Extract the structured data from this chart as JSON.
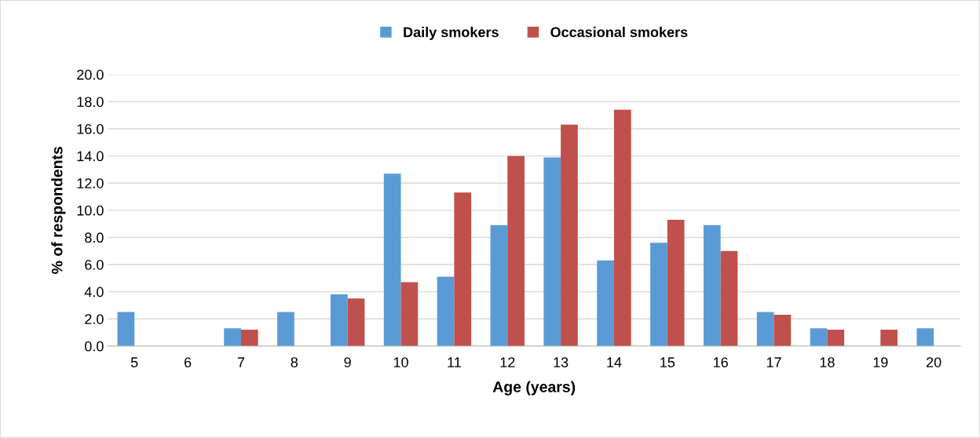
{
  "chart_data": {
    "type": "bar",
    "xlabel": "Age (years)",
    "ylabel": "% of respondents",
    "categories": [
      "5",
      "6",
      "7",
      "8",
      "9",
      "10",
      "11",
      "12",
      "13",
      "14",
      "15",
      "16",
      "17",
      "18",
      "19",
      "20"
    ],
    "series": [
      {
        "name": "Daily smokers",
        "color": "#5b9bd5",
        "values": [
          2.5,
          0,
          1.3,
          2.5,
          3.8,
          12.7,
          5.1,
          8.9,
          13.9,
          6.3,
          7.6,
          8.9,
          2.5,
          1.3,
          0,
          1.3
        ]
      },
      {
        "name": "Occasional smokers",
        "color": "#c0504d",
        "values": [
          0,
          0,
          1.2,
          0,
          3.5,
          4.7,
          11.3,
          14.0,
          16.3,
          17.4,
          9.3,
          7.0,
          2.3,
          1.2,
          1.2,
          0
        ]
      }
    ],
    "ylim": [
      0,
      20
    ],
    "yticks": [
      {
        "value": 0,
        "label": "0.0"
      },
      {
        "value": 2,
        "label": "2.0"
      },
      {
        "value": 4,
        "label": "4.0"
      },
      {
        "value": 6,
        "label": "6.0"
      },
      {
        "value": 8,
        "label": "8.0"
      },
      {
        "value": 10,
        "label": "10.0"
      },
      {
        "value": 12,
        "label": "12.0"
      },
      {
        "value": 14,
        "label": "14.0"
      },
      {
        "value": 16,
        "label": "16.0"
      },
      {
        "value": 18,
        "label": "18.0"
      },
      {
        "value": 20,
        "label": "20.0"
      }
    ],
    "grid": "y",
    "legend": "top"
  }
}
